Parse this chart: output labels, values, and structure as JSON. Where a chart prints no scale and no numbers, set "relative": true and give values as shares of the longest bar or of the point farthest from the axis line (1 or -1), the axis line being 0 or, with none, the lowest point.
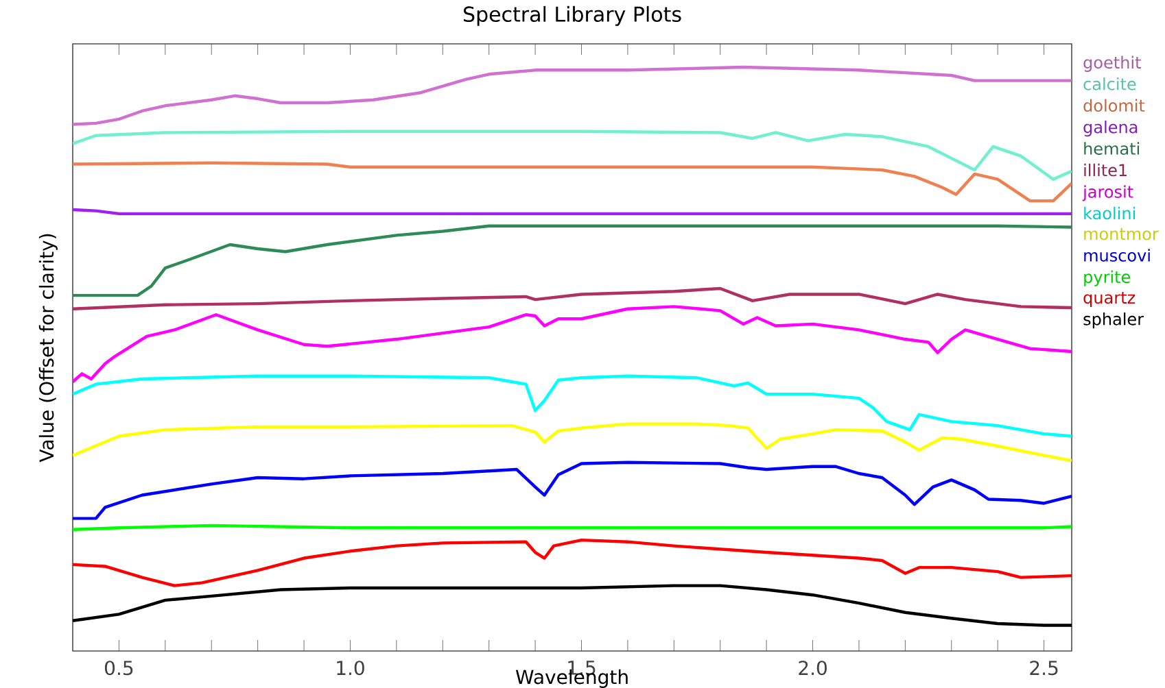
{
  "chart_data": {
    "type": "line",
    "title": "Spectral Library Plots",
    "xlabel": "Wavelength",
    "ylabel": "Value (Offset for clarity)",
    "relative": true,
    "legend": "right",
    "xlim": [
      0.4,
      2.56
    ],
    "xticks": [
      {
        "value": 0.5,
        "label": "0.5"
      },
      {
        "value": 0.6,
        "label": null
      },
      {
        "value": 0.7,
        "label": null
      },
      {
        "value": 0.8,
        "label": null
      },
      {
        "value": 0.9,
        "label": null
      },
      {
        "value": 1.0,
        "label": "1.0"
      },
      {
        "value": 1.1,
        "label": null
      },
      {
        "value": 1.2,
        "label": null
      },
      {
        "value": 1.3,
        "label": null
      },
      {
        "value": 1.4,
        "label": null
      },
      {
        "value": 1.5,
        "label": "1.5"
      },
      {
        "value": 1.6,
        "label": null
      },
      {
        "value": 1.7,
        "label": null
      },
      {
        "value": 1.8,
        "label": null
      },
      {
        "value": 1.9,
        "label": null
      },
      {
        "value": 2.0,
        "label": "2.0"
      },
      {
        "value": 2.1,
        "label": null
      },
      {
        "value": 2.2,
        "label": null
      },
      {
        "value": 2.3,
        "label": null
      },
      {
        "value": 2.4,
        "label": null
      },
      {
        "value": 2.5,
        "label": "2.5"
      }
    ],
    "series": [
      {
        "name": "goethit",
        "color": "#d070d0",
        "x": [
          0.4,
          0.45,
          0.5,
          0.55,
          0.6,
          0.7,
          0.75,
          0.8,
          0.85,
          0.95,
          1.05,
          1.15,
          1.25,
          1.3,
          1.4,
          1.6,
          1.85,
          2.1,
          2.3,
          2.35,
          2.56
        ],
        "values": [
          0.902,
          0.904,
          0.911,
          0.925,
          0.934,
          0.944,
          0.951,
          0.946,
          0.939,
          0.939,
          0.944,
          0.956,
          0.979,
          0.988,
          0.995,
          0.995,
          1.0,
          0.995,
          0.986,
          0.977,
          0.977
        ]
      },
      {
        "name": "calcite",
        "color": "#70f0d0",
        "x": [
          0.4,
          0.45,
          0.6,
          1.0,
          1.5,
          1.8,
          1.87,
          1.92,
          1.99,
          2.07,
          2.15,
          2.25,
          2.32,
          2.35,
          2.39,
          2.45,
          2.52,
          2.56
        ],
        "values": [
          0.869,
          0.883,
          0.888,
          0.89,
          0.89,
          0.888,
          0.878,
          0.888,
          0.874,
          0.885,
          0.881,
          0.864,
          0.836,
          0.824,
          0.864,
          0.848,
          0.808,
          0.822
        ]
      },
      {
        "name": "dolomit",
        "color": "#f08050",
        "x": [
          0.4,
          0.7,
          0.95,
          1.0,
          1.5,
          2.0,
          2.15,
          2.22,
          2.28,
          2.31,
          2.35,
          2.4,
          2.47,
          2.52,
          2.56
        ],
        "values": [
          0.834,
          0.836,
          0.834,
          0.829,
          0.829,
          0.829,
          0.824,
          0.813,
          0.794,
          0.782,
          0.817,
          0.808,
          0.771,
          0.771,
          0.801
        ]
      },
      {
        "name": "galena",
        "color": "#a020f0",
        "x": [
          0.4,
          0.45,
          0.5,
          1.0,
          1.5,
          2.0,
          2.56
        ],
        "values": [
          0.756,
          0.754,
          0.749,
          0.749,
          0.749,
          0.749,
          0.749
        ]
      },
      {
        "name": "hemati",
        "color": "#2e8b57",
        "x": [
          0.4,
          0.54,
          0.57,
          0.6,
          0.65,
          0.74,
          0.8,
          0.86,
          0.95,
          1.1,
          1.2,
          1.3,
          1.6,
          2.0,
          2.4,
          2.56
        ],
        "values": [
          0.609,
          0.609,
          0.625,
          0.656,
          0.67,
          0.696,
          0.689,
          0.684,
          0.696,
          0.712,
          0.719,
          0.728,
          0.728,
          0.728,
          0.728,
          0.726
        ]
      },
      {
        "name": "illite1",
        "color": "#b03060",
        "x": [
          0.4,
          0.6,
          0.8,
          1.0,
          1.2,
          1.38,
          1.4,
          1.5,
          1.7,
          1.8,
          1.87,
          1.95,
          2.1,
          2.2,
          2.27,
          2.33,
          2.45,
          2.56
        ],
        "values": [
          0.586,
          0.593,
          0.595,
          0.6,
          0.604,
          0.607,
          0.602,
          0.611,
          0.616,
          0.621,
          0.6,
          0.611,
          0.611,
          0.595,
          0.611,
          0.602,
          0.59,
          0.588
        ]
      },
      {
        "name": "jarosit",
        "color": "#ff00ff",
        "x": [
          0.4,
          0.42,
          0.44,
          0.47,
          0.49,
          0.56,
          0.62,
          0.71,
          0.8,
          0.9,
          0.95,
          1.1,
          1.3,
          1.38,
          1.4,
          1.42,
          1.45,
          1.5,
          1.6,
          1.7,
          1.8,
          1.85,
          1.88,
          1.92,
          2.0,
          2.1,
          2.2,
          2.25,
          2.27,
          2.3,
          2.33,
          2.4,
          2.47,
          2.56
        ],
        "values": [
          0.461,
          0.475,
          0.466,
          0.492,
          0.504,
          0.539,
          0.55,
          0.576,
          0.55,
          0.525,
          0.522,
          0.534,
          0.555,
          0.576,
          0.574,
          0.557,
          0.569,
          0.569,
          0.586,
          0.59,
          0.583,
          0.56,
          0.571,
          0.557,
          0.56,
          0.55,
          0.534,
          0.529,
          0.511,
          0.534,
          0.55,
          0.534,
          0.518,
          0.513
        ]
      },
      {
        "name": "kaolini",
        "color": "#00ffff",
        "x": [
          0.4,
          0.45,
          0.55,
          0.8,
          1.0,
          1.3,
          1.38,
          1.4,
          1.42,
          1.45,
          1.5,
          1.6,
          1.75,
          1.83,
          1.86,
          1.9,
          2.0,
          2.1,
          2.13,
          2.16,
          2.21,
          2.23,
          2.3,
          2.4,
          2.5,
          2.56
        ],
        "values": [
          0.44,
          0.457,
          0.466,
          0.471,
          0.471,
          0.468,
          0.457,
          0.412,
          0.429,
          0.464,
          0.468,
          0.471,
          0.468,
          0.454,
          0.459,
          0.44,
          0.44,
          0.433,
          0.417,
          0.393,
          0.379,
          0.405,
          0.393,
          0.386,
          0.372,
          0.368
        ]
      },
      {
        "name": "montmor",
        "color": "#ffff00",
        "x": [
          0.4,
          0.5,
          0.6,
          0.8,
          1.0,
          1.35,
          1.4,
          1.42,
          1.45,
          1.5,
          1.6,
          1.75,
          1.82,
          1.86,
          1.9,
          1.93,
          2.0,
          2.05,
          2.15,
          2.2,
          2.23,
          2.28,
          2.32,
          2.4,
          2.5,
          2.56
        ],
        "values": [
          0.335,
          0.368,
          0.379,
          0.384,
          0.384,
          0.386,
          0.375,
          0.358,
          0.377,
          0.382,
          0.389,
          0.389,
          0.386,
          0.382,
          0.347,
          0.363,
          0.372,
          0.379,
          0.377,
          0.358,
          0.344,
          0.365,
          0.363,
          0.351,
          0.335,
          0.326
        ]
      },
      {
        "name": "muscovi",
        "color": "#0000ff",
        "x": [
          0.4,
          0.45,
          0.47,
          0.55,
          0.7,
          0.8,
          0.9,
          1.0,
          1.2,
          1.36,
          1.4,
          1.42,
          1.45,
          1.5,
          1.6,
          1.8,
          1.86,
          1.9,
          2.0,
          2.05,
          2.1,
          2.15,
          2.2,
          2.22,
          2.26,
          2.3,
          2.35,
          2.38,
          2.45,
          2.5,
          2.56
        ],
        "values": [
          0.227,
          0.227,
          0.246,
          0.267,
          0.286,
          0.297,
          0.295,
          0.3,
          0.304,
          0.311,
          0.281,
          0.267,
          0.302,
          0.321,
          0.323,
          0.321,
          0.314,
          0.311,
          0.316,
          0.316,
          0.304,
          0.297,
          0.267,
          0.251,
          0.281,
          0.293,
          0.276,
          0.26,
          0.258,
          0.253,
          0.265
        ]
      },
      {
        "name": "pyrite",
        "color": "#00ff00",
        "x": [
          0.4,
          0.5,
          0.7,
          1.0,
          1.5,
          2.0,
          2.5,
          2.56
        ],
        "values": [
          0.208,
          0.211,
          0.215,
          0.211,
          0.211,
          0.211,
          0.211,
          0.213
        ]
      },
      {
        "name": "quartz",
        "color": "#ff0000",
        "x": [
          0.4,
          0.47,
          0.55,
          0.62,
          0.68,
          0.8,
          0.9,
          1.0,
          1.1,
          1.2,
          1.38,
          1.4,
          1.42,
          1.44,
          1.5,
          1.6,
          1.7,
          1.9,
          2.0,
          2.1,
          2.15,
          2.2,
          2.23,
          2.3,
          2.4,
          2.45,
          2.56
        ],
        "values": [
          0.148,
          0.145,
          0.126,
          0.112,
          0.117,
          0.138,
          0.159,
          0.171,
          0.18,
          0.185,
          0.187,
          0.169,
          0.159,
          0.18,
          0.19,
          0.187,
          0.18,
          0.169,
          0.164,
          0.159,
          0.155,
          0.133,
          0.143,
          0.143,
          0.136,
          0.126,
          0.129
        ]
      },
      {
        "name": "sphaler",
        "color": "#000000",
        "x": [
          0.4,
          0.5,
          0.6,
          0.7,
          0.85,
          1.0,
          1.5,
          1.7,
          1.8,
          1.9,
          2.0,
          2.1,
          2.2,
          2.3,
          2.4,
          2.5,
          2.56
        ],
        "values": [
          0.052,
          0.063,
          0.087,
          0.094,
          0.105,
          0.108,
          0.108,
          0.112,
          0.112,
          0.105,
          0.096,
          0.082,
          0.066,
          0.056,
          0.047,
          0.044,
          0.044
        ]
      }
    ]
  }
}
